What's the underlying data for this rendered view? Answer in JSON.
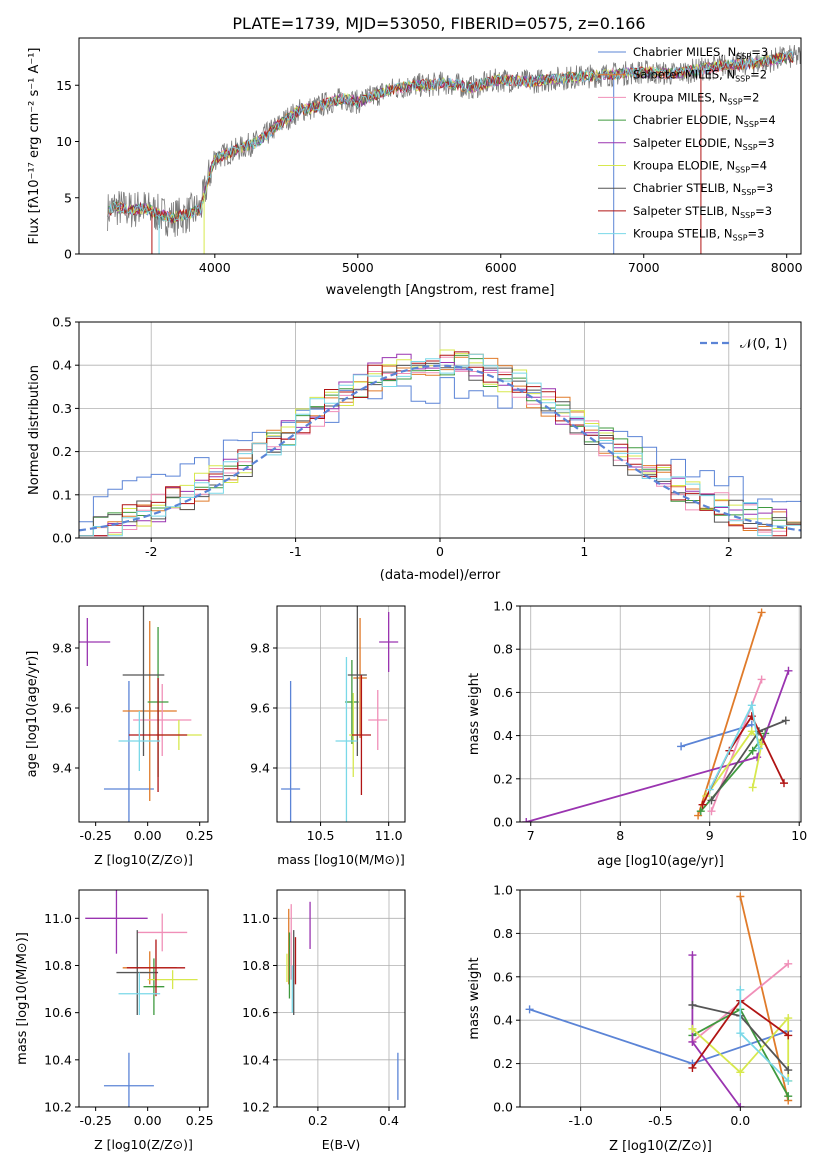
{
  "title": "PLATE=1739, MJD=53050, FIBERID=0575, z=0.166",
  "model_colors": [
    "#5b84d6",
    "#e07b2a",
    "#f08fb8",
    "#3f9a3f",
    "#9a34b0",
    "#d7e84e",
    "#555555",
    "#b01414",
    "#7ad8e8"
  ],
  "chart_data": [
    {
      "type": "line",
      "id": "spectrum",
      "xlabel": "wavelength [Angstrom, rest frame]",
      "ylabel": "Flux [fλ10⁻¹⁷ erg cm⁻² s⁻¹ A⁻¹]",
      "xlim": [
        3050,
        8100
      ],
      "ylim": [
        0,
        19.2
      ],
      "xticks": [
        4000,
        5000,
        6000,
        7000,
        8000
      ],
      "yticks": [
        0,
        5,
        10,
        15
      ],
      "grid": false,
      "legend_position": "top-right",
      "envelope": {
        "x": [
          3250,
          3300,
          3400,
          3500,
          3600,
          3700,
          3800,
          3900,
          3950,
          4000,
          4100,
          4200,
          4300,
          4400,
          4500,
          4600,
          4700,
          4800,
          4900,
          5000,
          5100,
          5200,
          5300,
          5400,
          5500,
          5600,
          5700,
          5800,
          5900,
          6000,
          6200,
          6400,
          6600,
          6800,
          7000,
          7200,
          7400,
          7600,
          7800,
          8000,
          8100
        ],
        "y": [
          3.8,
          4.2,
          3.9,
          4.1,
          3.6,
          3.2,
          3.5,
          4.0,
          6.5,
          8.5,
          9.0,
          9.5,
          10.0,
          11.0,
          12.0,
          12.8,
          13.0,
          13.5,
          13.8,
          13.5,
          14.0,
          14.5,
          14.8,
          15.0,
          15.0,
          15.2,
          15.0,
          14.8,
          15.2,
          15.5,
          15.3,
          15.6,
          15.8,
          16.0,
          16.2,
          16.0,
          16.4,
          16.8,
          17.0,
          17.5,
          17.5
        ]
      },
      "series": [
        {
          "name": "Chabrier MILES, N_SSP=3",
          "label_main": "Chabrier MILES, N",
          "label_sub": "SSP",
          "label_tail": "=3"
        },
        {
          "name": "Salpeter MILES, N_SSP=2",
          "label_main": "Salpeter MILES, N",
          "label_sub": "SSP",
          "label_tail": "=2"
        },
        {
          "name": "Kroupa MILES, N_SSP=2",
          "label_main": "Kroupa MILES, N",
          "label_sub": "SSP",
          "label_tail": "=2"
        },
        {
          "name": "Chabrier ELODIE, N_SSP=4",
          "label_main": "Chabrier ELODIE, N",
          "label_sub": "SSP",
          "label_tail": "=4"
        },
        {
          "name": "Salpeter ELODIE, N_SSP=3",
          "label_main": "Salpeter ELODIE, N",
          "label_sub": "SSP",
          "label_tail": "=3"
        },
        {
          "name": "Kroupa ELODIE, N_SSP=4",
          "label_main": "Kroupa ELODIE, N",
          "label_sub": "SSP",
          "label_tail": "=4"
        },
        {
          "name": "Chabrier STELIB, N_SSP=3",
          "label_main": "Chabrier STELIB, N",
          "label_sub": "SSP",
          "label_tail": "=3"
        },
        {
          "name": "Salpeter STELIB, N_SSP=3",
          "label_main": "Salpeter STELIB, N",
          "label_sub": "SSP",
          "label_tail": "=3"
        },
        {
          "name": "Kroupa STELIB, N_SSP=3",
          "label_main": "Kroupa STELIB, N",
          "label_sub": "SSP",
          "label_tail": "=3"
        }
      ]
    },
    {
      "type": "histogram",
      "id": "residuals",
      "xlabel": "(data-model)/error",
      "ylabel": "Normed distribution",
      "xlim": [
        -2.5,
        2.5
      ],
      "ylim": [
        0,
        0.5
      ],
      "xticks": [
        -2,
        -1,
        0,
        1,
        2
      ],
      "yticks": [
        0.0,
        0.1,
        0.2,
        0.3,
        0.4,
        0.5
      ],
      "grid": true,
      "legend_position": "top-right",
      "legend": "𝒩(0, 1)",
      "bin_width": 0.1,
      "reference_curve": {
        "name": "N(0,1)",
        "mean": 0,
        "sigma": 1
      }
    },
    {
      "type": "scatter",
      "id": "age_vs_Z",
      "xlabel": "Z [log10(Z/Z⊙)]",
      "ylabel": "age [log10(age/yr)]",
      "xlim": [
        -0.33,
        0.29
      ],
      "ylim": [
        9.22,
        9.94
      ],
      "xticks": [
        -0.25,
        0.0,
        0.25
      ],
      "yticks": [
        9.4,
        9.6,
        9.8
      ],
      "grid": false,
      "points": [
        {
          "x": -0.09,
          "xerr": 0.12,
          "y": 9.33,
          "yerr": 0.36
        },
        {
          "x": 0.01,
          "xerr": 0.13,
          "y": 9.59,
          "yerr": 0.3
        },
        {
          "x": 0.07,
          "xerr": 0.14,
          "y": 9.56,
          "yerr": 0.12
        },
        {
          "x": 0.05,
          "xerr": 0.05,
          "y": 9.62,
          "yerr": 0.25
        },
        {
          "x": -0.29,
          "xerr": 0.11,
          "y": 9.82,
          "yerr": 0.08
        },
        {
          "x": 0.15,
          "xerr": 0.11,
          "y": 9.51,
          "yerr": 0.05
        },
        {
          "x": -0.02,
          "xerr": 0.1,
          "y": 9.71,
          "yerr": 0.27
        },
        {
          "x": 0.05,
          "xerr": 0.14,
          "y": 9.51,
          "yerr": 0.19
        },
        {
          "x": -0.04,
          "xerr": 0.1,
          "y": 9.49,
          "yerr": 0.1
        }
      ]
    },
    {
      "type": "scatter",
      "id": "age_vs_mass",
      "xlabel": "mass [log10(M/M⊙)]",
      "xlim": [
        10.18,
        11.12
      ],
      "ylim": [
        9.22,
        9.94
      ],
      "xticks": [
        10.5,
        10.8,
        11.0
      ],
      "xtick_labels": [
        "10.5",
        "11.0"
      ],
      "xtick_values": [
        10.5,
        11.0
      ],
      "yticks": [
        9.4,
        9.6,
        9.8
      ],
      "grid": true,
      "points": [
        {
          "x": 10.28,
          "xerr": 0.07,
          "y": 9.33,
          "yerr": 0.36
        },
        {
          "x": 10.79,
          "xerr": 0.05,
          "y": 9.7,
          "yerr": 0.2
        },
        {
          "x": 10.92,
          "xerr": 0.07,
          "y": 9.56,
          "yerr": 0.1
        },
        {
          "x": 10.73,
          "xerr": 0.05,
          "y": 9.62,
          "yerr": 0.14
        },
        {
          "x": 11.0,
          "xerr": 0.07,
          "y": 9.82,
          "yerr": 0.1
        },
        {
          "x": 10.74,
          "xerr": 0.03,
          "y": 9.51,
          "yerr": 0.14
        },
        {
          "x": 10.77,
          "xerr": 0.07,
          "y": 9.71,
          "yerr": 0.27
        },
        {
          "x": 10.8,
          "xerr": 0.07,
          "y": 9.51,
          "yerr": 0.2
        },
        {
          "x": 10.69,
          "xerr": 0.08,
          "y": 9.49,
          "yerr": 0.28
        }
      ]
    },
    {
      "type": "line",
      "id": "massweight_vs_age",
      "xlabel": "age [log10(age/yr)]",
      "ylabel": "mass weight",
      "xlim": [
        6.88,
        10.02
      ],
      "ylim": [
        0,
        1.0
      ],
      "xticks": [
        7,
        8,
        9,
        10
      ],
      "yticks": [
        0.0,
        0.2,
        0.4,
        0.6,
        0.8,
        1.0
      ],
      "grid": true,
      "series": [
        {
          "x": [
            8.68,
            9.47
          ],
          "y": [
            0.35,
            0.45
          ]
        },
        {
          "x": [
            8.87,
            9.58
          ],
          "y": [
            0.03,
            0.97
          ]
        },
        {
          "x": [
            9.02,
            9.58
          ],
          "y": [
            0.05,
            0.66
          ]
        },
        {
          "x": [
            8.9,
            9.48,
            9.62
          ],
          "y": [
            0.05,
            0.33,
            0.41
          ]
        },
        {
          "x": [
            6.95,
            9.53,
            9.88
          ],
          "y": [
            0.0,
            0.3,
            0.7
          ]
        },
        {
          "x": [
            8.96,
            9.47,
            9.58,
            9.48
          ],
          "y": [
            0.12,
            0.42,
            0.36,
            0.16
          ]
        },
        {
          "x": [
            9.02,
            9.55,
            9.85
          ],
          "y": [
            0.1,
            0.42,
            0.47
          ]
        },
        {
          "x": [
            8.92,
            9.22,
            9.47,
            9.83
          ],
          "y": [
            0.08,
            0.33,
            0.49,
            0.18
          ]
        },
        {
          "x": [
            9.0,
            9.47,
            9.55
          ],
          "y": [
            0.15,
            0.54,
            0.34
          ]
        }
      ]
    },
    {
      "type": "scatter",
      "id": "mass_vs_Z",
      "xlabel": "Z [log10(Z/Z⊙)]",
      "ylabel": "mass [log10(M/M⊙)]",
      "xlim": [
        -0.33,
        0.29
      ],
      "ylim": [
        10.2,
        11.12
      ],
      "xticks": [
        -0.25,
        0.0,
        0.25
      ],
      "yticks": [
        10.2,
        10.4,
        10.6,
        10.8,
        11.0
      ],
      "grid": false,
      "points": [
        {
          "x": -0.09,
          "xerr": 0.12,
          "y": 10.29,
          "yerr": 0.14
        },
        {
          "x": 0.01,
          "xerr": 0.13,
          "y": 10.79,
          "yerr": 0.07
        },
        {
          "x": 0.07,
          "xerr": 0.12,
          "y": 10.94,
          "yerr": 0.08
        },
        {
          "x": 0.03,
          "xerr": 0.05,
          "y": 10.71,
          "yerr": 0.12
        },
        {
          "x": -0.15,
          "xerr": 0.15,
          "y": 11.0,
          "yerr": 0.15
        },
        {
          "x": 0.12,
          "xerr": 0.12,
          "y": 10.74,
          "yerr": 0.04
        },
        {
          "x": -0.05,
          "xerr": 0.1,
          "y": 10.77,
          "yerr": 0.18
        },
        {
          "x": 0.04,
          "xerr": 0.14,
          "y": 10.79,
          "yerr": 0.12
        },
        {
          "x": -0.04,
          "xerr": 0.1,
          "y": 10.68,
          "yerr": 0.09
        }
      ]
    },
    {
      "type": "scatter",
      "id": "mass_vs_ebv",
      "xlabel": "E(B-V)",
      "xlim": [
        0.085,
        0.445
      ],
      "ylim": [
        10.2,
        11.12
      ],
      "xticks": [
        0.2,
        0.4
      ],
      "yticks": [
        10.2,
        10.4,
        10.6,
        10.8,
        11.0
      ],
      "grid": true,
      "points": [
        {
          "x": 0.425,
          "y": 10.33,
          "yerr": 0.1
        },
        {
          "x": 0.118,
          "y": 10.88,
          "yerr": 0.16
        },
        {
          "x": 0.125,
          "y": 10.9,
          "yerr": 0.16
        },
        {
          "x": 0.12,
          "y": 10.8,
          "yerr": 0.14
        },
        {
          "x": 0.178,
          "y": 10.97,
          "yerr": 0.1
        },
        {
          "x": 0.113,
          "y": 10.79,
          "yerr": 0.06
        },
        {
          "x": 0.132,
          "y": 10.77,
          "yerr": 0.18
        },
        {
          "x": 0.137,
          "y": 10.82,
          "yerr": 0.1
        },
        {
          "x": 0.128,
          "y": 10.7,
          "yerr": 0.1
        }
      ]
    },
    {
      "type": "line",
      "id": "massweight_vs_Z",
      "xlabel": "Z [log10(Z/Z⊙)]",
      "ylabel": "mass weight",
      "xlim": [
        -1.38,
        0.38
      ],
      "ylim": [
        0,
        1.0
      ],
      "xticks": [
        -1.0,
        -0.5,
        0.0
      ],
      "yticks": [
        0.0,
        0.2,
        0.4,
        0.6,
        0.8,
        1.0
      ],
      "grid": true,
      "series": [
        {
          "x": [
            -1.32,
            -0.3,
            0.3
          ],
          "y": [
            0.45,
            0.2,
            0.35
          ]
        },
        {
          "x": [
            0.0,
            0.3
          ],
          "y": [
            0.97,
            0.03
          ]
        },
        {
          "x": [
            -0.3,
            0.3
          ],
          "y": [
            0.3,
            0.66
          ]
        },
        {
          "x": [
            -0.3,
            0.0,
            0.3
          ],
          "y": [
            0.33,
            0.45,
            0.05
          ]
        },
        {
          "x": [
            -0.3,
            -0.3,
            0.0
          ],
          "y": [
            0.7,
            0.3,
            0.0
          ]
        },
        {
          "x": [
            -0.3,
            0.0,
            0.3,
            0.3
          ],
          "y": [
            0.36,
            0.16,
            0.41,
            0.12
          ]
        },
        {
          "x": [
            -0.3,
            0.0,
            0.3
          ],
          "y": [
            0.47,
            0.42,
            0.17
          ]
        },
        {
          "x": [
            -0.3,
            0.0,
            0.3
          ],
          "y": [
            0.18,
            0.49,
            0.33
          ]
        },
        {
          "x": [
            0.0,
            0.0,
            0.3
          ],
          "y": [
            0.54,
            0.34,
            0.12
          ]
        }
      ]
    }
  ]
}
